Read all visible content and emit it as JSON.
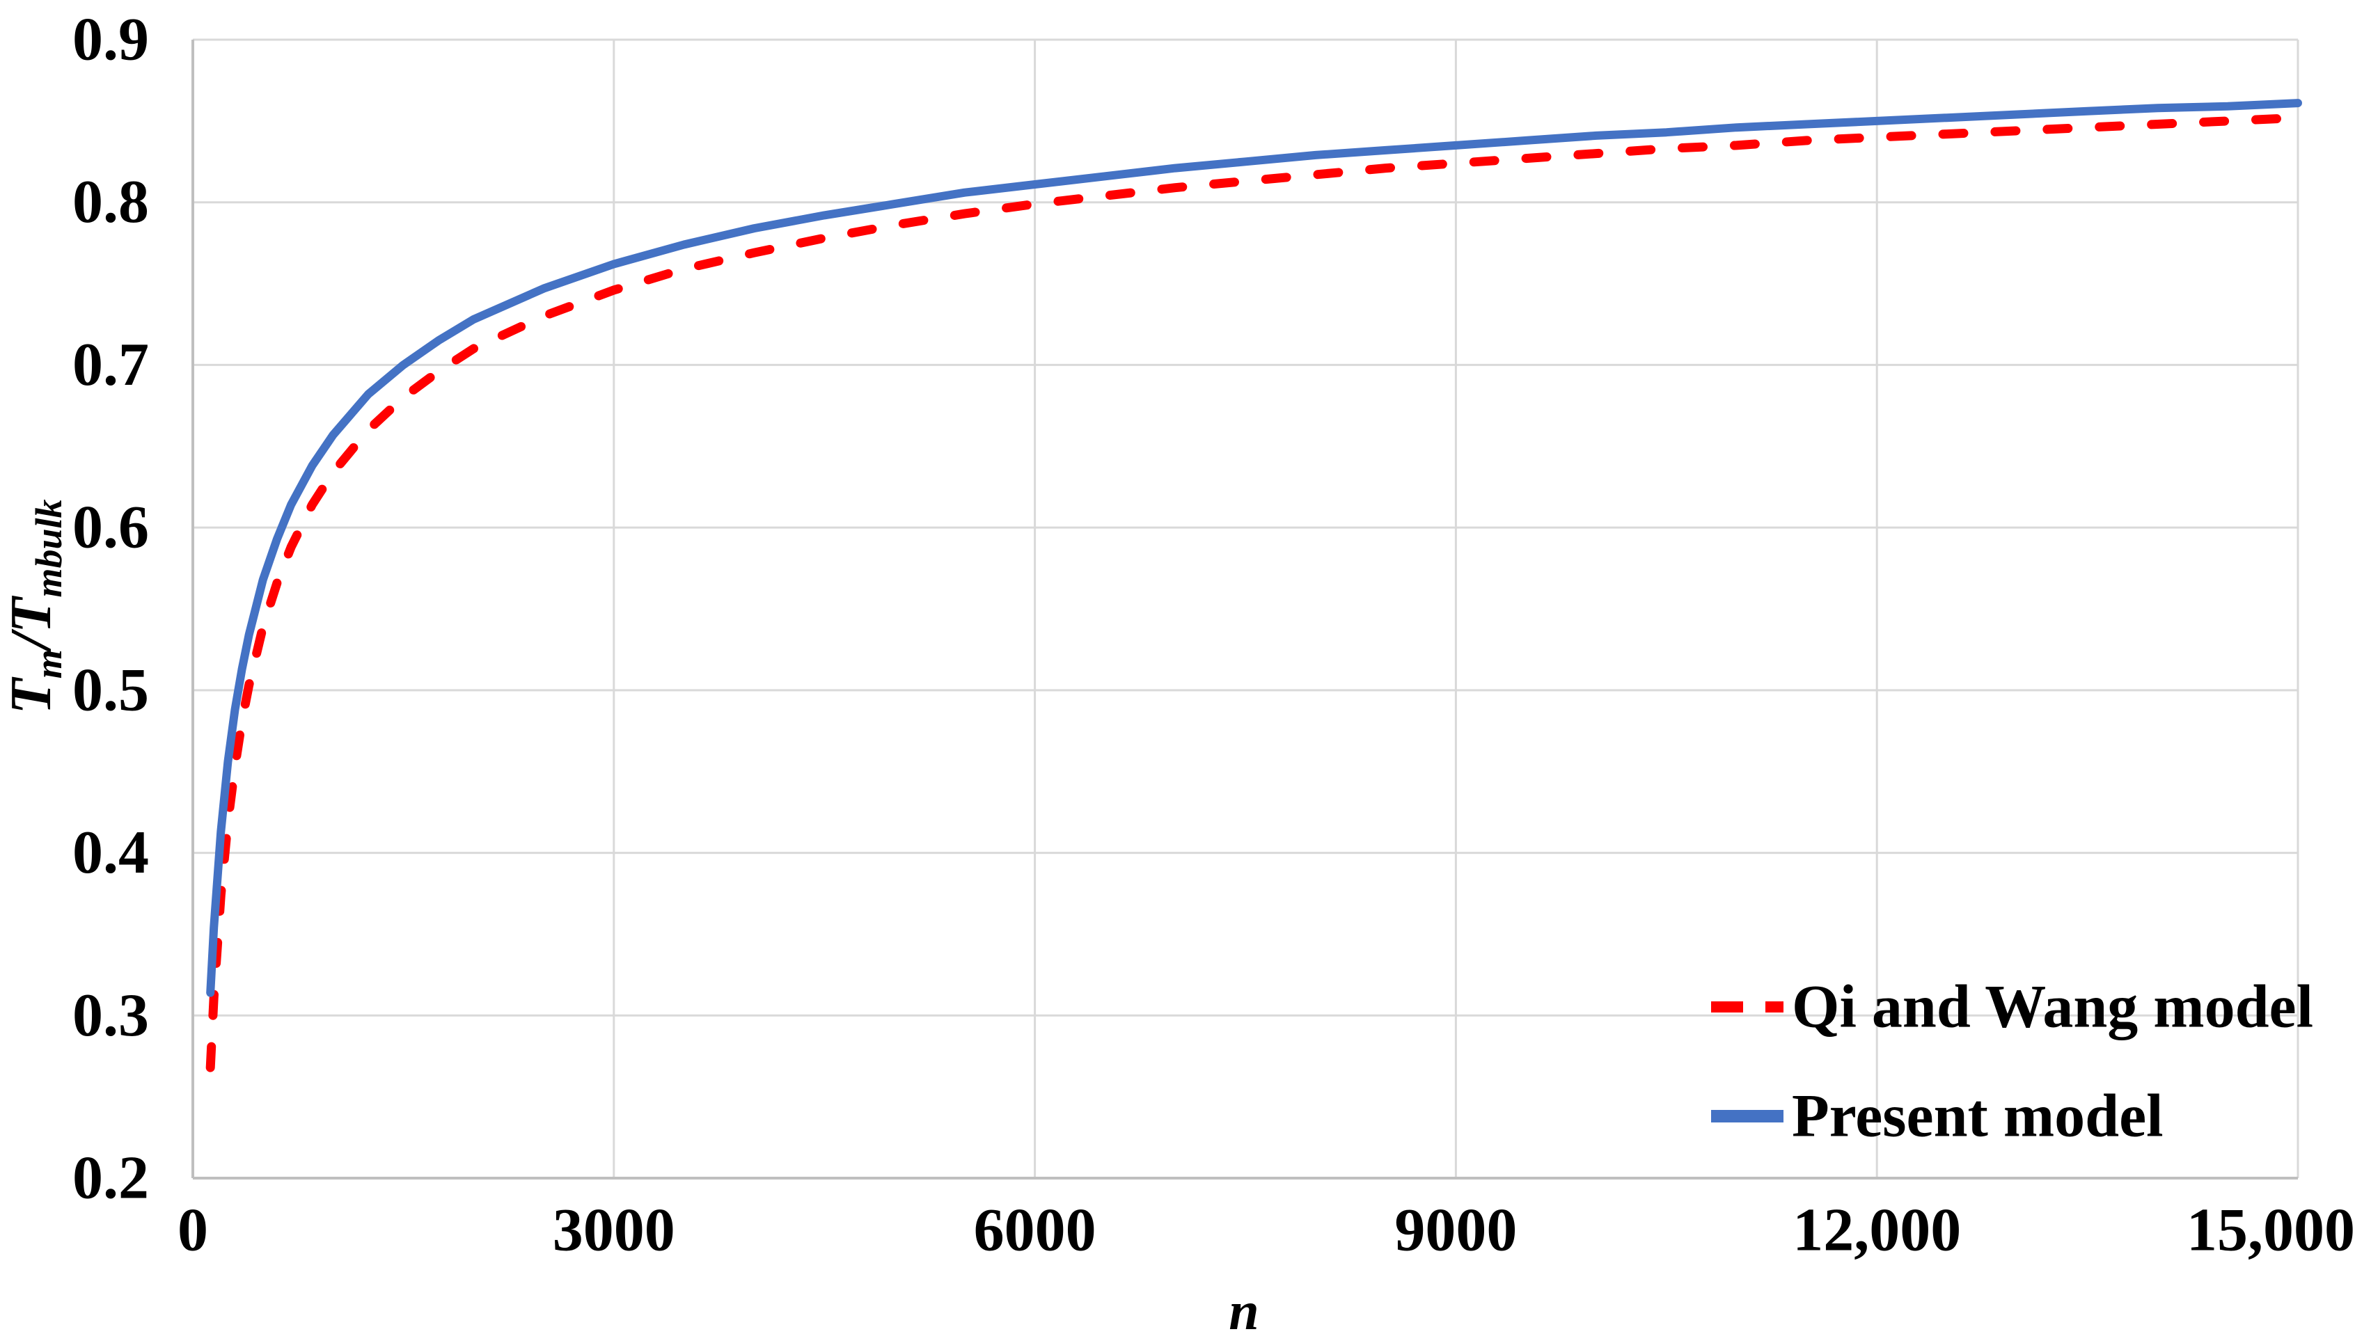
{
  "figure": {
    "background": "#FFFFFF",
    "gridline_color": "#D9D9D9",
    "axis_line_color": "#BFBFBF",
    "text_color": "#000000"
  },
  "chart_data": {
    "type": "line",
    "title": "",
    "xlabel": "n",
    "ylabel": "Tm/Tmbulk",
    "ylabel_parts": {
      "t1": "T",
      "s1": "m",
      "sep": "/",
      "t2": "T",
      "s2": "mbulk"
    },
    "xlim": [
      0,
      15000
    ],
    "ylim": [
      0.2,
      0.9
    ],
    "grid": true,
    "legend_position": "inside-bottom-right",
    "x_ticks": [
      {
        "value": 0,
        "label": "0"
      },
      {
        "value": 3000,
        "label": "3000"
      },
      {
        "value": 6000,
        "label": "6000"
      },
      {
        "value": 9000,
        "label": "9000"
      },
      {
        "value": 12000,
        "label": "12,000"
      },
      {
        "value": 15000,
        "label": "15,000"
      }
    ],
    "y_ticks": [
      {
        "value": 0.9,
        "label": "0.9"
      },
      {
        "value": 0.8,
        "label": "0.8"
      },
      {
        "value": 0.7,
        "label": "0.7"
      },
      {
        "value": 0.6,
        "label": "0.6"
      },
      {
        "value": 0.5,
        "label": "0.5"
      },
      {
        "value": 0.4,
        "label": "0.4"
      },
      {
        "value": 0.3,
        "label": "0.3"
      },
      {
        "value": 0.2,
        "label": "0.2"
      }
    ],
    "x": [
      125,
      150,
      200,
      250,
      300,
      350,
      400,
      500,
      600,
      700,
      850,
      1000,
      1250,
      1500,
      1750,
      2000,
      2500,
      3000,
      3500,
      4000,
      4500,
      5000,
      5500,
      6000,
      6500,
      7000,
      7500,
      8000,
      8500,
      9000,
      9500,
      10000,
      10500,
      11000,
      11500,
      12000,
      12500,
      13000,
      13500,
      14000,
      14500,
      15000
    ],
    "series": [
      {
        "name": "Qi and Wang model",
        "color": "#FF0000",
        "style": "dashed",
        "values": [
          0.268,
          0.311,
          0.374,
          0.419,
          0.453,
          0.481,
          0.503,
          0.539,
          0.566,
          0.588,
          0.614,
          0.634,
          0.66,
          0.68,
          0.696,
          0.71,
          0.73,
          0.746,
          0.759,
          0.769,
          0.778,
          0.786,
          0.793,
          0.799,
          0.804,
          0.809,
          0.813,
          0.817,
          0.821,
          0.824,
          0.827,
          0.83,
          0.833,
          0.835,
          0.838,
          0.84,
          0.842,
          0.844,
          0.846,
          0.848,
          0.85,
          0.852
        ]
      },
      {
        "name": "Present model",
        "color": "#4472C4",
        "style": "solid",
        "values": [
          0.314,
          0.354,
          0.413,
          0.456,
          0.488,
          0.513,
          0.534,
          0.568,
          0.593,
          0.614,
          0.638,
          0.657,
          0.682,
          0.7,
          0.715,
          0.728,
          0.747,
          0.762,
          0.774,
          0.784,
          0.792,
          0.799,
          0.806,
          0.811,
          0.816,
          0.821,
          0.825,
          0.829,
          0.832,
          0.835,
          0.838,
          0.841,
          0.843,
          0.846,
          0.848,
          0.85,
          0.852,
          0.854,
          0.856,
          0.858,
          0.859,
          0.861
        ]
      }
    ]
  }
}
